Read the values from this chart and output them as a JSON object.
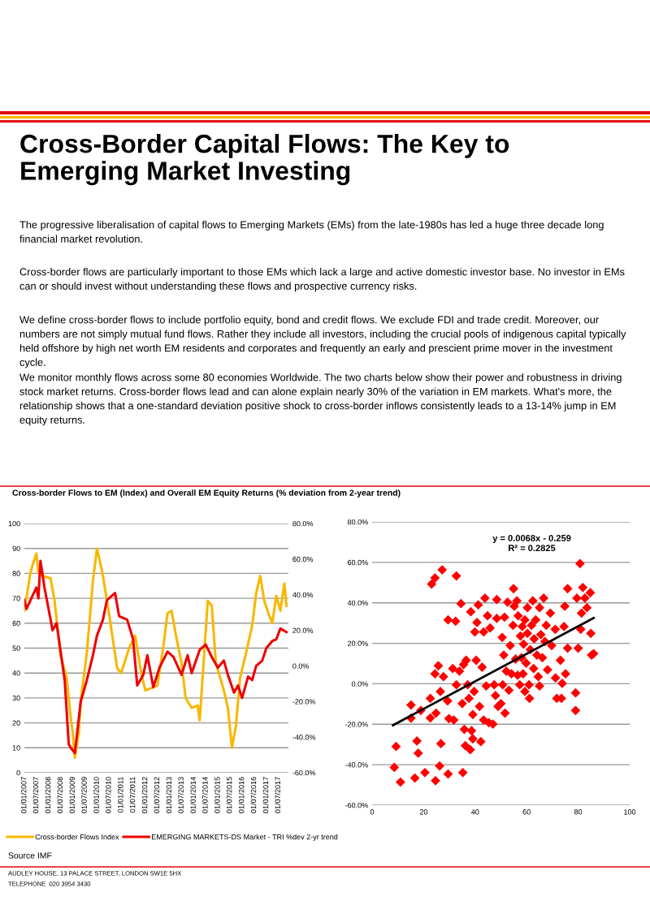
{
  "chart_data": [
    {
      "type": "line",
      "title": "Cross-border Flows to EM (Index) and Overall EM Equity Returns (% deviation from 2-year trend)",
      "xlim": [
        "2007-01-01",
        "2017-12-01"
      ],
      "xticks": [
        {
          "value": "2007-01-01",
          "label": "01/01/2007"
        },
        {
          "value": "2007-07-01",
          "label": "01/07/2007"
        },
        {
          "value": "2008-01-01",
          "label": "01/01/2008"
        },
        {
          "value": "2008-07-01",
          "label": "01/07/2008"
        },
        {
          "value": "2009-01-01",
          "label": "01/01/2009"
        },
        {
          "value": "2009-07-01",
          "label": "01/07/2009"
        },
        {
          "value": "2010-01-01",
          "label": "01/01/2010"
        },
        {
          "value": "2010-07-01",
          "label": "01/07/2010"
        },
        {
          "value": "2011-01-01",
          "label": "01/01/2011"
        },
        {
          "value": "2011-07-01",
          "label": "01/07/2011"
        },
        {
          "value": "2012-01-01",
          "label": "01/01/2012"
        },
        {
          "value": "2012-07-01",
          "label": "01/07/2012"
        },
        {
          "value": "2013-01-01",
          "label": "01/01/2013"
        },
        {
          "value": "2013-07-01",
          "label": "01/07/2013"
        },
        {
          "value": "2014-01-01",
          "label": "01/01/2014"
        },
        {
          "value": "2014-07-01",
          "label": "01/07/2014"
        },
        {
          "value": "2015-01-01",
          "label": "01/01/2015"
        },
        {
          "value": "2015-07-01",
          "label": "01/07/2015"
        },
        {
          "value": "2016-01-01",
          "label": "01/01/2016"
        },
        {
          "value": "2016-07-01",
          "label": "01/07/2016"
        },
        {
          "value": "2017-01-01",
          "label": "01/01/2017"
        },
        {
          "value": "2017-07-01",
          "label": "01/07/2017"
        }
      ],
      "ylim": [
        0,
        100
      ],
      "yticks": [
        0,
        10,
        20,
        30,
        40,
        50,
        60,
        70,
        80,
        90,
        100
      ],
      "y2lim": [
        -60,
        80
      ],
      "y2ticks": [
        {
          "value": -60,
          "label": "-60.0%"
        },
        {
          "value": -40,
          "label": "-40.0%"
        },
        {
          "value": -20,
          "label": "-20.0%"
        },
        {
          "value": 0,
          "label": "0.0%"
        },
        {
          "value": 20,
          "label": "20.0%"
        },
        {
          "value": 40,
          "label": "40.0%"
        },
        {
          "value": 60,
          "label": "60.0%"
        },
        {
          "value": 80,
          "label": "80.0%"
        }
      ],
      "grid": "y",
      "legend": "bottom",
      "series": [
        {
          "name": "Cross-border Flows Index",
          "color": "#f7b800",
          "x": [
            "2007-01",
            "2007-02",
            "2007-04",
            "2007-05",
            "2007-07",
            "2007-08",
            "2007-10",
            "2008-02",
            "2008-04",
            "2008-07",
            "2008-10",
            "2008-12",
            "2009-01",
            "2009-02",
            "2009-04",
            "2009-05",
            "2009-08",
            "2009-11",
            "2010-01",
            "2010-03",
            "2010-04",
            "2010-07",
            "2010-11",
            "2011-01",
            "2011-05",
            "2011-08",
            "2011-11",
            "2012-01",
            "2012-04",
            "2012-07",
            "2012-10",
            "2012-12",
            "2013-02",
            "2013-04",
            "2013-07",
            "2013-09",
            "2013-12",
            "2014-03",
            "2014-04",
            "2014-08",
            "2014-10",
            "2014-12",
            "2015-04",
            "2015-06",
            "2015-08",
            "2015-10",
            "2015-12",
            "2016-03",
            "2016-06",
            "2016-08",
            "2016-10",
            "2016-12",
            "2017-02",
            "2017-04",
            "2017-06",
            "2017-08",
            "2017-10",
            "2017-11"
          ],
          "values": [
            65,
            70,
            80,
            83,
            88,
            80,
            79,
            78,
            69,
            47,
            38,
            22,
            16,
            6,
            16,
            29,
            48,
            77,
            90,
            83,
            79,
            64,
            42,
            40,
            50,
            55,
            40,
            33,
            34,
            35,
            51,
            64,
            65,
            56,
            44,
            30,
            26,
            27,
            21,
            69,
            67,
            44,
            33,
            26,
            10,
            19,
            38,
            48,
            59,
            72,
            79,
            69,
            64,
            60,
            71,
            65,
            76,
            67
          ]
        },
        {
          "name": "EMERGING MARKETS-DS Market - TRI %dev 2-yr trend",
          "color": "#ee0000",
          "axis": "y2",
          "x": [
            "2007-01",
            "2007-02",
            "2007-07",
            "2007-08",
            "2007-09",
            "2007-11",
            "2008-02",
            "2008-03",
            "2008-05",
            "2008-09",
            "2008-11",
            "2008-12",
            "2009-02",
            "2009-05",
            "2009-08",
            "2009-11",
            "2010-01",
            "2010-04",
            "2010-06",
            "2010-10",
            "2010-12",
            "2011-04",
            "2011-07",
            "2011-09",
            "2011-12",
            "2012-02",
            "2012-05",
            "2012-08",
            "2012-12",
            "2013-03",
            "2013-07",
            "2013-10",
            "2013-12",
            "2014-04",
            "2014-07",
            "2014-10",
            "2015-01",
            "2015-04",
            "2015-06",
            "2015-09",
            "2015-11",
            "2016-01",
            "2016-04",
            "2016-06",
            "2016-08",
            "2016-11",
            "2017-01",
            "2017-04",
            "2017-06",
            "2017-08",
            "2017-11"
          ],
          "values": [
            37,
            32,
            44,
            38,
            59,
            44,
            26,
            20,
            24,
            -8,
            -44,
            -46,
            -49,
            -20,
            -8,
            6,
            17,
            26,
            37,
            41,
            28,
            26,
            15,
            -11,
            -5,
            6,
            -12,
            -1,
            8,
            5,
            -5,
            6,
            -4,
            9,
            12,
            5,
            -1,
            3,
            -5,
            -15,
            -11,
            -18,
            -6,
            -8,
            0,
            3,
            10,
            14,
            15,
            21,
            19
          ]
        }
      ],
      "annotations": [
        "Cross-Border Capital Flows: The Key to Emerging Market Investing",
        "The progressive liberalisation of capital flows to Emerging Markets (EMs) from the late-1980s has led a huge three decade long financial market revolution.",
        "Cross-border flows are particularly important to those EMs which lack a large and active domestic investor base. No investor in EMs can or should invest without understanding these flows and prospective currency risks.",
        "We define cross-border flows to include portfolio equity, bond and credit flows. We exclude FDI and trade credit. Moreover, our numbers are not simply mutual fund flows. Rather they include all investors, including the crucial pools of indigenous capital typically held offshore by high net worth EM residents and corporates and frequently an early and prescient prime mover in the investment cycle.",
        "We monitor monthly flows across some 80 economies Worldwide. The two charts below show their power and robustness in driving stock market returns. Cross-border flows lead and can alone explain nearly 30% of the variation in EM markets. What's more, the relationship shows that a one-standard deviation positive shock to cross-border inflows consistently leads to a 13-14% jump in EM equity returns.",
        "Source IMF",
        "AUDLEY HOUSE, 13 PALACE STREET, LONDON SW1E 5HX",
        "TELEPHONE  020 3954 3430"
      ]
    },
    {
      "type": "scatter",
      "xlim": [
        0,
        100
      ],
      "xticks": [
        0,
        20,
        40,
        60,
        80,
        100
      ],
      "ylim": [
        -60,
        80
      ],
      "yticks": [
        {
          "value": -60,
          "label": "-60.0%"
        },
        {
          "value": -40,
          "label": "-40.0%"
        },
        {
          "value": -20,
          "label": "-20.0%"
        },
        {
          "value": 0,
          "label": "0.0%"
        },
        {
          "value": 20,
          "label": "20.0%"
        },
        {
          "value": 40,
          "label": "40.0%"
        },
        {
          "value": 60,
          "label": "60.0%"
        },
        {
          "value": 80,
          "label": "80.0%"
        }
      ],
      "grid": "y",
      "series": [
        {
          "color": "#ff0000",
          "marker": "diamond",
          "x": [
            8.6,
            9.3,
            11,
            15.1,
            15.1,
            16.6,
            17.4,
            17.9,
            18.9,
            20.5,
            22.6,
            22.6,
            23.1,
            24.4,
            24.4,
            24.6,
            24.8,
            25.7,
            26.2,
            26.5,
            26.7,
            27.2,
            27.7,
            29.3,
            29.5,
            29.5,
            29.8,
            31.3,
            31.7,
            32.4,
            32.7,
            32.7,
            33.9,
            34.5,
            35,
            35.2,
            35.5,
            35.8,
            36.2,
            36.5,
            37.1,
            37.6,
            38.1,
            38.3,
            38.6,
            39.1,
            39.1,
            39.6,
            39.9,
            40.4,
            40.7,
            41.2,
            41.7,
            42.2,
            42.7,
            43.3,
            43.3,
            43.8,
            44.3,
            44.8,
            45.3,
            45.8,
            46.9,
            47.4,
            47.9,
            48.4,
            48.4,
            48.9,
            50,
            50.5,
            50.7,
            51.1,
            51.4,
            51.6,
            52.1,
            52.6,
            53.1,
            53.6,
            54.1,
            54.7,
            54.9,
            55.2,
            55.7,
            56.2,
            56.5,
            56.7,
            57.3,
            57.6,
            58,
            58.3,
            58.6,
            58.8,
            59.3,
            59.3,
            59.8,
            60.3,
            60.3,
            60.9,
            61.1,
            61.4,
            61.9,
            62.4,
            62.7,
            62.9,
            63.5,
            64,
            64.5,
            65,
            65,
            65.5,
            66.1,
            66.6,
            67.1,
            67.6,
            68.1,
            69.2,
            69.7,
            71.1,
            71.2,
            71.7,
            73.1,
            73.5,
            73.8,
            74.5,
            74.8,
            75.1,
            75.9,
            75.9,
            79,
            79,
            79.5,
            80,
            80.7,
            81,
            81.3,
            81.8,
            82.6,
            83.4,
            84.7,
            84.9,
            85.2,
            86
          ],
          "values": [
            -41.3,
            -31,
            -48.6,
            -17,
            -10.5,
            -46.6,
            -28.3,
            -34.3,
            -13.2,
            -43.9,
            -16.9,
            -7.2,
            49.3,
            52.3,
            4.9,
            -47.9,
            -14.5,
            8.9,
            -40.6,
            -3.8,
            -29.6,
            56.3,
            3.5,
            -8.5,
            31.6,
            -44.6,
            -17.2,
            7.5,
            -17.9,
            30.9,
            53.3,
            -0.5,
            6.2,
            39.6,
            -9.8,
            -43.9,
            9.5,
            -22.5,
            -30.6,
            11.6,
            -0.5,
            -7.2,
            -32.6,
            35.6,
            -23.2,
            -15.2,
            -27.2,
            -3.8,
            25.6,
            11.6,
            30.3,
            39,
            -11.2,
            -28.6,
            8.2,
            25.6,
            -17.9,
            42.3,
            -1.1,
            33.6,
            -19.2,
            27.6,
            -19.9,
            -0.5,
            -5.8,
            41.6,
            32.3,
            -11.2,
            -9.8,
            22.9,
            -0.5,
            14.2,
            32.9,
            -14.5,
            6.2,
            40.3,
            -3.2,
            18.9,
            4.9,
            28.9,
            47,
            38.3,
            12.2,
            41,
            4.2,
            33.6,
            -0.5,
            23.6,
            12.9,
            28.3,
            4.9,
            19.6,
            31.6,
            -3.8,
            10.2,
            37.6,
            24.9,
            -0.5,
            -7.2,
            16.9,
            28.9,
            41,
            7.5,
            22.2,
            31.6,
            14.2,
            3.5,
            -1.1,
            37.6,
            24.3,
            12.9,
            42.3,
            20.9,
            28.9,
            6.9,
            34.9,
            18.9,
            26.9,
            2.9,
            -7.2,
            11.6,
            -7.2,
            0.2,
            28.3,
            38.3,
            4.9,
            47,
            17.6,
            -4.5,
            -13.2,
            42.3,
            17.6,
            59.4,
            26.9,
            34.9,
            47.6,
            42.3,
            37.6,
            45,
            24.9,
            14.2,
            14.9
          ]
        },
        {
          "type": "line",
          "color": "#000000",
          "x": [
            8.1,
            86
          ],
          "values": [
            -20.5,
            32.5
          ]
        }
      ],
      "annotations": [
        "y = 0.0068x - 0.259",
        "R² = 0.2825"
      ]
    }
  ]
}
